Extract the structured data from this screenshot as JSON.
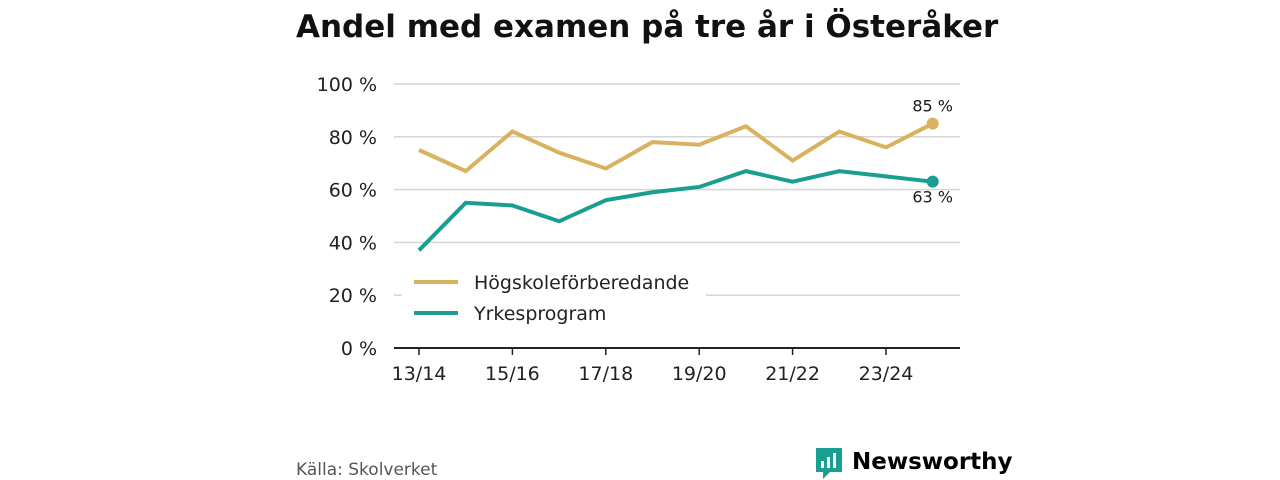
{
  "chart_data": {
    "type": "line",
    "title": "Andel med examen på tre år i Österåker",
    "xlabel": "",
    "ylabel": "",
    "ylim": [
      0,
      100
    ],
    "yticks": [
      0,
      20,
      40,
      60,
      80,
      100
    ],
    "ytick_labels": [
      "0 %",
      "20 %",
      "40 %",
      "60 %",
      "80 %",
      "100 %"
    ],
    "x": [
      "13/14",
      "14/15",
      "15/16",
      "16/17",
      "17/18",
      "18/19",
      "19/20",
      "20/21",
      "21/22",
      "22/23",
      "23/24",
      "24/25"
    ],
    "xtick_labels": [
      "13/14",
      "15/16",
      "17/18",
      "19/20",
      "21/22",
      "23/24"
    ],
    "series": [
      {
        "name": "Högskoleförberedande",
        "color": "#d9b25f",
        "values": [
          75,
          67,
          82,
          74,
          68,
          78,
          77,
          84,
          71,
          82,
          76,
          85
        ],
        "end_label": "85 %"
      },
      {
        "name": "Yrkesprogram",
        "color": "#1a9e92",
        "values": [
          37,
          55,
          54,
          48,
          56,
          59,
          61,
          67,
          63,
          67,
          65,
          63
        ],
        "end_label": "63 %"
      }
    ],
    "grid": true,
    "legend_position": "lower-left"
  },
  "footer": {
    "source": "Källa: Skolverket",
    "brand": "Newsworthy"
  },
  "colors": {
    "brand": "#1a9e92",
    "grid": "#d6d6d6",
    "axis": "#222222"
  },
  "icons": {
    "brand_logo": "bar-chart-speech-bubble-icon"
  }
}
